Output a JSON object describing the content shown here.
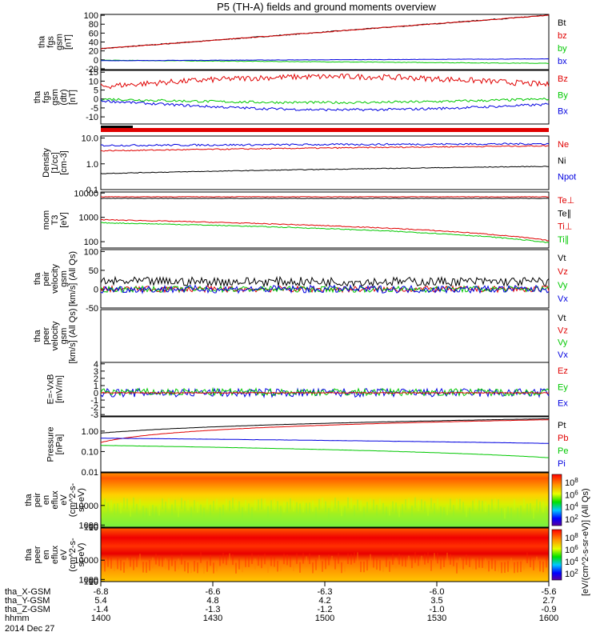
{
  "title": "P5 (TH-A) fields and ground moments overview",
  "colors": {
    "black": "#000000",
    "red": "#e00000",
    "green": "#00c800",
    "blue": "#0000e0"
  },
  "chart_data": [
    {
      "type": "line",
      "ylabel": [
        "tha",
        "fgs",
        "gsm",
        "[nT]"
      ],
      "yticks": [
        "100",
        "80",
        "60",
        "40",
        "20",
        "0",
        "-20"
      ],
      "ylim": [
        -22,
        102
      ],
      "legend": [
        {
          "name": "Bt",
          "color": "#000000"
        },
        {
          "name": "bz",
          "color": "#e00000"
        },
        {
          "name": "by",
          "color": "#00c800"
        },
        {
          "name": "bx",
          "color": "#0000e0"
        }
      ],
      "series": [
        {
          "name": "Bt",
          "start": 25,
          "end": 100,
          "noise": 1.0
        },
        {
          "name": "bz",
          "start": 25,
          "end": 100,
          "noise": 0.8
        },
        {
          "name": "by",
          "start": -1,
          "end": -8,
          "noise": 0.6
        },
        {
          "name": "bx",
          "start": -2,
          "end": 2,
          "noise": 0.4
        }
      ]
    },
    {
      "type": "line",
      "ylabel": [
        "tha",
        "fgs",
        "gsm",
        "(dtr)",
        "[nT]"
      ],
      "yticks": [
        "15",
        "10",
        "5",
        "0",
        "-5",
        "-10"
      ],
      "ylim": [
        -14,
        16
      ],
      "legend": [
        {
          "name": "Bz",
          "color": "#e00000"
        },
        {
          "name": "By",
          "color": "#00c800"
        },
        {
          "name": "Bx",
          "color": "#0000e0"
        }
      ],
      "series": [
        {
          "name": "Bz",
          "start": 7,
          "end": 8,
          "mid": 12,
          "noise": 1.6
        },
        {
          "name": "By",
          "start": 0,
          "end": 0,
          "mid": -2,
          "noise": 0.7
        },
        {
          "name": "Bx",
          "start": -1,
          "end": -3,
          "mid": -5,
          "noise": 0.7
        }
      ]
    },
    {
      "type": "line",
      "log": true,
      "ylabel": [
        "Density",
        "[1/cc]",
        "[cm-3]"
      ],
      "yticks": [
        "10.0",
        "1.0",
        "0.1"
      ],
      "ylim": [
        0.1,
        12
      ],
      "legend": [
        {
          "name": "Ne",
          "color": "#e00000"
        },
        {
          "name": "Ni",
          "color": "#000000"
        },
        {
          "name": "Npot",
          "color": "#0000e0"
        }
      ],
      "series": [
        {
          "name": "Npot",
          "start": 5.2,
          "end": 6.0,
          "noise": 0.08
        },
        {
          "name": "Ne",
          "start": 3.2,
          "end": 5.0,
          "noise": 0.05
        },
        {
          "name": "Ni",
          "start": 0.42,
          "end": 0.8,
          "noise": 0.03
        }
      ]
    },
    {
      "type": "line",
      "log": true,
      "ylabel": [
        "mom",
        "T3",
        "[eV]"
      ],
      "yticks": [
        "10000",
        "1000",
        "100"
      ],
      "ylim": [
        55,
        11000
      ],
      "legend": [
        {
          "name": "Te⊥",
          "color": "#e00000"
        },
        {
          "name": "Te∥",
          "color": "#000000"
        },
        {
          "name": "Ti⊥",
          "color": "#e00000"
        },
        {
          "name": "Ti∥",
          "color": "#00c800"
        }
      ],
      "series": [
        {
          "name": "Te⊥",
          "start": 7000,
          "end": 7000,
          "noise": 0.02
        },
        {
          "name": "Te∥",
          "start": 6000,
          "end": 6000,
          "noise": 0.02
        },
        {
          "name": "Ti⊥",
          "start": 800,
          "end": 110,
          "noise": 0.04
        },
        {
          "name": "Ti∥",
          "start": 600,
          "end": 90,
          "noise": 0.04
        }
      ]
    },
    {
      "type": "line",
      "ylabel": [
        "tha",
        "peir",
        "velocity",
        "gsm",
        "[km/s] (All Qs)"
      ],
      "yticks": [
        "100",
        "50",
        "0",
        "-50"
      ],
      "ylim": [
        -50,
        105
      ],
      "legend": [
        {
          "name": "Vt",
          "color": "#000000"
        },
        {
          "name": "Vz",
          "color": "#e00000"
        },
        {
          "name": "Vy",
          "color": "#00c800"
        },
        {
          "name": "Vx",
          "color": "#0000e0"
        }
      ],
      "series": [
        {
          "name": "Vt",
          "start": 20,
          "end": 20,
          "noise": 12
        },
        {
          "name": "Vz",
          "start": 0,
          "end": 0,
          "noise": 8
        },
        {
          "name": "Vy",
          "start": 0,
          "end": 0,
          "noise": 8
        },
        {
          "name": "Vx",
          "start": 0,
          "end": 0,
          "noise": 10
        }
      ]
    },
    {
      "type": "line",
      "ylabel": [
        "tha",
        "peer",
        "velocity",
        "gsm",
        "[km/s] (All Qs)"
      ],
      "yticks": [],
      "ylim": [
        -50,
        100
      ],
      "legend": [
        {
          "name": "Vt",
          "color": "#000000"
        },
        {
          "name": "Vz",
          "color": "#e00000"
        },
        {
          "name": "Vy",
          "color": "#00c800"
        },
        {
          "name": "Vx",
          "color": "#0000e0"
        }
      ],
      "series": []
    },
    {
      "type": "line",
      "ylabel": [
        "E=-VxB",
        "[mV/m]"
      ],
      "yticks": [
        "4",
        "3",
        "2",
        "1",
        "0",
        "-1",
        "-2",
        "-3"
      ],
      "ylim": [
        -3.2,
        4.2
      ],
      "legend": [
        {
          "name": "Ez",
          "color": "#e00000"
        },
        {
          "name": "Ey",
          "color": "#00c800"
        },
        {
          "name": "Ex",
          "color": "#0000e0"
        }
      ],
      "series": [
        {
          "name": "Ex",
          "start": 0,
          "end": 0,
          "noise": 0.6
        },
        {
          "name": "Ey",
          "start": 0.1,
          "end": 0.1,
          "noise": 0.5
        },
        {
          "name": "Ez",
          "start": 0,
          "end": 0,
          "noise": 0.05
        }
      ]
    },
    {
      "type": "line",
      "log": true,
      "ylabel": [
        "Pressure",
        "[nPa]"
      ],
      "yticks": [
        "1.00",
        "0.10",
        "0.01"
      ],
      "ylim": [
        0.01,
        5
      ],
      "legend": [
        {
          "name": "Pt",
          "color": "#000000"
        },
        {
          "name": "Pb",
          "color": "#e00000"
        },
        {
          "name": "Pe",
          "color": "#00c800"
        },
        {
          "name": "Pi",
          "color": "#0000e0"
        }
      ],
      "series": [
        {
          "name": "Pt",
          "start": 0.8,
          "end": 4.0,
          "noise": 0.01
        },
        {
          "name": "Pb",
          "start": 0.28,
          "end": 3.6,
          "noise": 0.01
        },
        {
          "name": "Pi",
          "start": 0.45,
          "end": 0.25,
          "noise": 0.01
        },
        {
          "name": "Pe",
          "start": 0.2,
          "end": 0.05,
          "noise": 0.01
        }
      ]
    },
    {
      "type": "heatmap",
      "ylabel": [
        "tha",
        "peir",
        "en",
        "eflux",
        "eV",
        "(cm^2-s-",
        "sr-eV)"
      ],
      "yticks": [
        "10000",
        "1000",
        "100",
        "10"
      ],
      "ylim": [
        5,
        25000
      ],
      "colorbar_label": "[eV/(cm^2-s-sr-eV)] (All Qs)",
      "colorbar_ticks": [
        "10^8",
        "10^6",
        "10^4",
        "10^2"
      ]
    },
    {
      "type": "heatmap",
      "ylabel": [
        "tha",
        "peer",
        "en",
        "eflux",
        "eV",
        "(cm^2-s-",
        "sr-eV)"
      ],
      "yticks": [
        "10000",
        "1000",
        "100",
        "10"
      ],
      "ylim": [
        5,
        25000
      ],
      "colorbar_label": "[eV/(cm^2-s-sr-eV)]",
      "colorbar_ticks": [
        "10^8",
        "10^6",
        "10^4",
        "10^2"
      ]
    }
  ],
  "orbit_table": {
    "rows": [
      {
        "label": "tha_X-GSM",
        "values": [
          "-6.8",
          "-6.6",
          "-6.3",
          "-6.0",
          "-5.6"
        ]
      },
      {
        "label": "tha_Y-GSM",
        "values": [
          "5.4",
          "4.8",
          "4.2",
          "3.5",
          "2.7"
        ]
      },
      {
        "label": "tha_Z-GSM",
        "values": [
          "-1.4",
          "-1.3",
          "-1.2",
          "-1.0",
          "-0.9"
        ]
      },
      {
        "label": "hhmm",
        "values": [
          "1400",
          "1430",
          "1500",
          "1530",
          "1600"
        ]
      }
    ],
    "date": "2014 Dec 27"
  }
}
